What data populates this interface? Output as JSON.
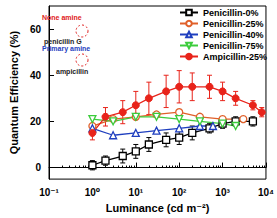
{
  "chart_data": {
    "type": "line",
    "log": "x",
    "grid": false,
    "legend": "top-right",
    "xlabel": "Luminance (cd m⁻²)",
    "ylabel": "Quantum Efficiency (%)",
    "xlim": [
      0.1,
      10000
    ],
    "xticks": [
      {
        "value": 0.1,
        "label": "10⁻¹"
      },
      {
        "value": 1,
        "label": "10⁰"
      },
      {
        "value": 10,
        "label": "10¹"
      },
      {
        "value": 100,
        "label": "10²"
      },
      {
        "value": 1000,
        "label": "10³"
      },
      {
        "value": 10000,
        "label": "10⁴"
      }
    ],
    "ylim": [
      -5,
      70
    ],
    "yticks": [
      0,
      20,
      40,
      60
    ],
    "annotations": [
      {
        "text": "None amine",
        "color": "#e02020"
      },
      {
        "text": "penicillin G",
        "color": "#222222"
      },
      {
        "text": "Primary amine",
        "color": "#1f3fbf"
      },
      {
        "text": "ampicillin",
        "color": "#222222"
      }
    ],
    "series": [
      {
        "name": "Penicillin-0%",
        "color": "#000000",
        "marker": "open_square",
        "x": [
          1,
          2,
          5,
          10,
          20,
          50,
          100,
          200,
          500,
          1000,
          2000,
          5000
        ],
        "values": [
          1,
          3,
          5,
          7,
          10,
          12,
          13,
          15,
          17,
          19,
          20,
          20
        ],
        "errors": [
          2,
          2,
          3,
          3,
          3,
          3,
          3,
          3,
          2,
          2,
          2,
          2
        ]
      },
      {
        "name": "Penicillin-25%",
        "color": "#e0602a",
        "marker": "open_circle",
        "x": [
          1,
          3,
          10,
          30,
          100,
          300,
          1000,
          3000
        ],
        "values": [
          18,
          21,
          22,
          23,
          24,
          22,
          21,
          21
        ]
      },
      {
        "name": "Penicillin-40%",
        "color": "#1f3fbf",
        "marker": "open_triangle",
        "x": [
          1,
          3,
          10,
          30,
          100,
          300,
          600
        ],
        "values": [
          17,
          14,
          15,
          16,
          17,
          18,
          18
        ]
      },
      {
        "name": "Penicillin-75%",
        "color": "#3ccc3c",
        "marker": "open_triangle_down",
        "x": [
          1,
          3,
          10,
          30,
          100,
          300,
          1000,
          2000
        ],
        "values": [
          21,
          20,
          22,
          22,
          21,
          20,
          19,
          18
        ]
      },
      {
        "name": "Ampicillin-25%",
        "color": "#e8231a",
        "marker": "filled_circle",
        "x": [
          1,
          2,
          5,
          10,
          20,
          50,
          100,
          200,
          500,
          1000,
          2000,
          5000,
          8000
        ],
        "values": [
          15,
          22,
          24,
          27,
          30,
          33,
          35,
          35,
          35,
          33,
          30,
          27,
          24
        ],
        "errors": [
          3,
          4,
          5,
          6,
          7,
          7,
          7,
          6,
          5,
          4,
          3,
          2,
          2
        ]
      }
    ]
  }
}
